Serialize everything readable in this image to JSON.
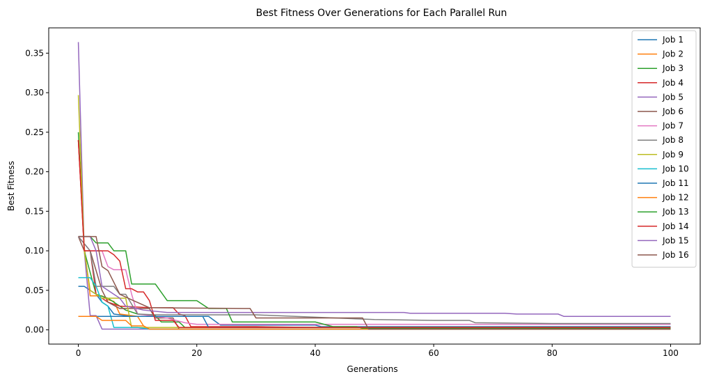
{
  "chart_data": {
    "type": "line",
    "title": "Best Fitness Over Generations for Each Parallel Run",
    "xlabel": "Generations",
    "ylabel": "Best Fitness",
    "xlim": [
      -5,
      105
    ],
    "ylim": [
      -0.018,
      0.382
    ],
    "xticks": [
      0,
      20,
      40,
      60,
      80,
      100
    ],
    "xtick_labels": [
      "0",
      "20",
      "40",
      "60",
      "80",
      "100"
    ],
    "yticks": [
      0.0,
      0.05,
      0.1,
      0.15,
      0.2,
      0.25,
      0.3,
      0.35
    ],
    "ytick_labels": [
      "0.00",
      "0.05",
      "0.10",
      "0.15",
      "0.20",
      "0.25",
      "0.30",
      "0.35"
    ],
    "grid": false,
    "legend_position": "top-right",
    "series": [
      {
        "name": "Job 1",
        "color": "#1f77b4",
        "points": [
          [
            0,
            0.055
          ],
          [
            1,
            0.055
          ],
          [
            2,
            0.05
          ],
          [
            3,
            0.045
          ],
          [
            4,
            0.035
          ],
          [
            5,
            0.03
          ],
          [
            6,
            0.02
          ],
          [
            9,
            0.017
          ],
          [
            22,
            0.017
          ],
          [
            24,
            0.006
          ],
          [
            40,
            0.006
          ],
          [
            41,
            0.004
          ],
          [
            100,
            0.004
          ]
        ]
      },
      {
        "name": "Job 2",
        "color": "#ff7f0e",
        "points": [
          [
            0,
            0.24
          ],
          [
            1,
            0.105
          ],
          [
            2,
            0.043
          ],
          [
            4,
            0.043
          ],
          [
            5,
            0.038
          ],
          [
            6,
            0.036
          ],
          [
            7,
            0.02
          ],
          [
            10,
            0.017
          ],
          [
            11,
            0.005
          ],
          [
            12,
            0.001
          ],
          [
            100,
            0.001
          ]
        ]
      },
      {
        "name": "Job 3",
        "color": "#2ca02c",
        "points": [
          [
            0,
            0.25
          ],
          [
            1,
            0.1
          ],
          [
            3,
            0.045
          ],
          [
            5,
            0.04
          ],
          [
            7,
            0.03
          ],
          [
            8,
            0.025
          ],
          [
            10,
            0.02
          ],
          [
            13,
            0.018
          ],
          [
            14,
            0.01
          ],
          [
            17,
            0.01
          ],
          [
            18,
            0.003
          ],
          [
            100,
            0.003
          ]
        ]
      },
      {
        "name": "Job 4",
        "color": "#d62728",
        "points": [
          [
            0,
            0.24
          ],
          [
            1,
            0.1
          ],
          [
            2,
            0.1
          ],
          [
            3,
            0.045
          ],
          [
            5,
            0.035
          ],
          [
            7,
            0.03
          ],
          [
            12,
            0.028
          ],
          [
            16,
            0.028
          ],
          [
            17,
            0.02
          ],
          [
            18,
            0.018
          ],
          [
            19,
            0.004
          ],
          [
            30,
            0.004
          ],
          [
            40,
            0.003
          ],
          [
            100,
            0.003
          ]
        ]
      },
      {
        "name": "Job 5",
        "color": "#9467bd",
        "points": [
          [
            0,
            0.364
          ],
          [
            1,
            0.1
          ],
          [
            2,
            0.018
          ],
          [
            3,
            0.018
          ],
          [
            4,
            0.001
          ],
          [
            100,
            0.001
          ]
        ]
      },
      {
        "name": "Job 6",
        "color": "#8c564b",
        "points": [
          [
            0,
            0.118
          ],
          [
            1,
            0.1
          ],
          [
            2,
            0.1
          ],
          [
            4,
            0.05
          ],
          [
            5,
            0.035
          ],
          [
            7,
            0.027
          ],
          [
            12,
            0.027
          ],
          [
            13,
            0.015
          ],
          [
            16,
            0.015
          ],
          [
            17,
            0.001
          ],
          [
            100,
            0.001
          ]
        ]
      },
      {
        "name": "Job 7",
        "color": "#e377c2",
        "points": [
          [
            0,
            0.118
          ],
          [
            2,
            0.1
          ],
          [
            3,
            0.1
          ],
          [
            4,
            0.1
          ],
          [
            5,
            0.08
          ],
          [
            6,
            0.076
          ],
          [
            8,
            0.076
          ],
          [
            9,
            0.045
          ],
          [
            10,
            0.02
          ],
          [
            15,
            0.015
          ],
          [
            18,
            0.009
          ],
          [
            20,
            0.007
          ],
          [
            40,
            0.007
          ],
          [
            100,
            0.007
          ]
        ]
      },
      {
        "name": "Job 8",
        "color": "#7f7f7f",
        "points": [
          [
            0,
            0.118
          ],
          [
            2,
            0.1
          ],
          [
            3,
            0.055
          ],
          [
            6,
            0.055
          ],
          [
            7,
            0.045
          ],
          [
            8,
            0.045
          ],
          [
            10,
            0.02
          ],
          [
            13,
            0.019
          ],
          [
            30,
            0.019
          ],
          [
            50,
            0.013
          ],
          [
            60,
            0.012
          ],
          [
            66,
            0.012
          ],
          [
            67,
            0.009
          ],
          [
            80,
            0.008
          ],
          [
            100,
            0.008
          ]
        ]
      },
      {
        "name": "Job 9",
        "color": "#bcbd22",
        "points": [
          [
            0,
            0.297
          ],
          [
            1,
            0.1
          ],
          [
            2,
            0.05
          ],
          [
            4,
            0.04
          ],
          [
            8,
            0.04
          ],
          [
            9,
            0.003
          ],
          [
            100,
            0.003
          ]
        ]
      },
      {
        "name": "Job 10",
        "color": "#17becf",
        "points": [
          [
            0,
            0.066
          ],
          [
            2,
            0.066
          ],
          [
            3,
            0.055
          ],
          [
            4,
            0.035
          ],
          [
            5,
            0.03
          ],
          [
            6,
            0.003
          ],
          [
            10,
            0.003
          ],
          [
            12,
            0.001
          ],
          [
            100,
            0.001
          ]
        ]
      },
      {
        "name": "Job 11",
        "color": "#1f77b4",
        "points": [
          [
            0,
            0.017
          ],
          [
            4,
            0.017
          ],
          [
            5,
            0.017
          ],
          [
            9,
            0.017
          ],
          [
            21,
            0.017
          ],
          [
            22,
            0.003
          ],
          [
            100,
            0.003
          ]
        ]
      },
      {
        "name": "Job 12",
        "color": "#ff7f0e",
        "points": [
          [
            0,
            0.017
          ],
          [
            3,
            0.017
          ],
          [
            4,
            0.012
          ],
          [
            8,
            0.012
          ],
          [
            9,
            0.005
          ],
          [
            11,
            0.005
          ],
          [
            12,
            0.001
          ],
          [
            100,
            0.001
          ]
        ]
      },
      {
        "name": "Job 13",
        "color": "#2ca02c",
        "points": [
          [
            0,
            0.118
          ],
          [
            2,
            0.118
          ],
          [
            3,
            0.11
          ],
          [
            5,
            0.11
          ],
          [
            6,
            0.1
          ],
          [
            8,
            0.1
          ],
          [
            9,
            0.058
          ],
          [
            13,
            0.058
          ],
          [
            15,
            0.037
          ],
          [
            20,
            0.037
          ],
          [
            22,
            0.027
          ],
          [
            25,
            0.027
          ],
          [
            26,
            0.01
          ],
          [
            40,
            0.01
          ],
          [
            41,
            0.008
          ],
          [
            43,
            0.004
          ],
          [
            47,
            0.004
          ],
          [
            48,
            0.002
          ],
          [
            100,
            0.002
          ]
        ]
      },
      {
        "name": "Job 14",
        "color": "#d62728",
        "points": [
          [
            0,
            0.24
          ],
          [
            1,
            0.1
          ],
          [
            3,
            0.1
          ],
          [
            5,
            0.1
          ],
          [
            6,
            0.095
          ],
          [
            7,
            0.087
          ],
          [
            8,
            0.052
          ],
          [
            9,
            0.052
          ],
          [
            10,
            0.048
          ],
          [
            11,
            0.048
          ],
          [
            12,
            0.037
          ],
          [
            13,
            0.012
          ],
          [
            16,
            0.012
          ],
          [
            17,
            0.003
          ],
          [
            100,
            0.003
          ]
        ]
      },
      {
        "name": "Job 15",
        "color": "#9467bd",
        "points": [
          [
            0,
            0.118
          ],
          [
            2,
            0.118
          ],
          [
            3,
            0.1
          ],
          [
            4,
            0.055
          ],
          [
            6,
            0.045
          ],
          [
            7,
            0.04
          ],
          [
            8,
            0.03
          ],
          [
            11,
            0.025
          ],
          [
            15,
            0.022
          ],
          [
            40,
            0.022
          ],
          [
            55,
            0.022
          ],
          [
            56,
            0.021
          ],
          [
            72,
            0.021
          ],
          [
            74,
            0.02
          ],
          [
            81,
            0.02
          ],
          [
            82,
            0.017
          ],
          [
            100,
            0.017
          ]
        ]
      },
      {
        "name": "Job 16",
        "color": "#8c564b",
        "points": [
          [
            0,
            0.118
          ],
          [
            3,
            0.118
          ],
          [
            4,
            0.08
          ],
          [
            5,
            0.075
          ],
          [
            6,
            0.06
          ],
          [
            7,
            0.045
          ],
          [
            9,
            0.038
          ],
          [
            12,
            0.028
          ],
          [
            28,
            0.027
          ],
          [
            29,
            0.027
          ],
          [
            30,
            0.015
          ],
          [
            48,
            0.015
          ],
          [
            49,
            0.001
          ],
          [
            100,
            0.001
          ]
        ]
      }
    ]
  }
}
